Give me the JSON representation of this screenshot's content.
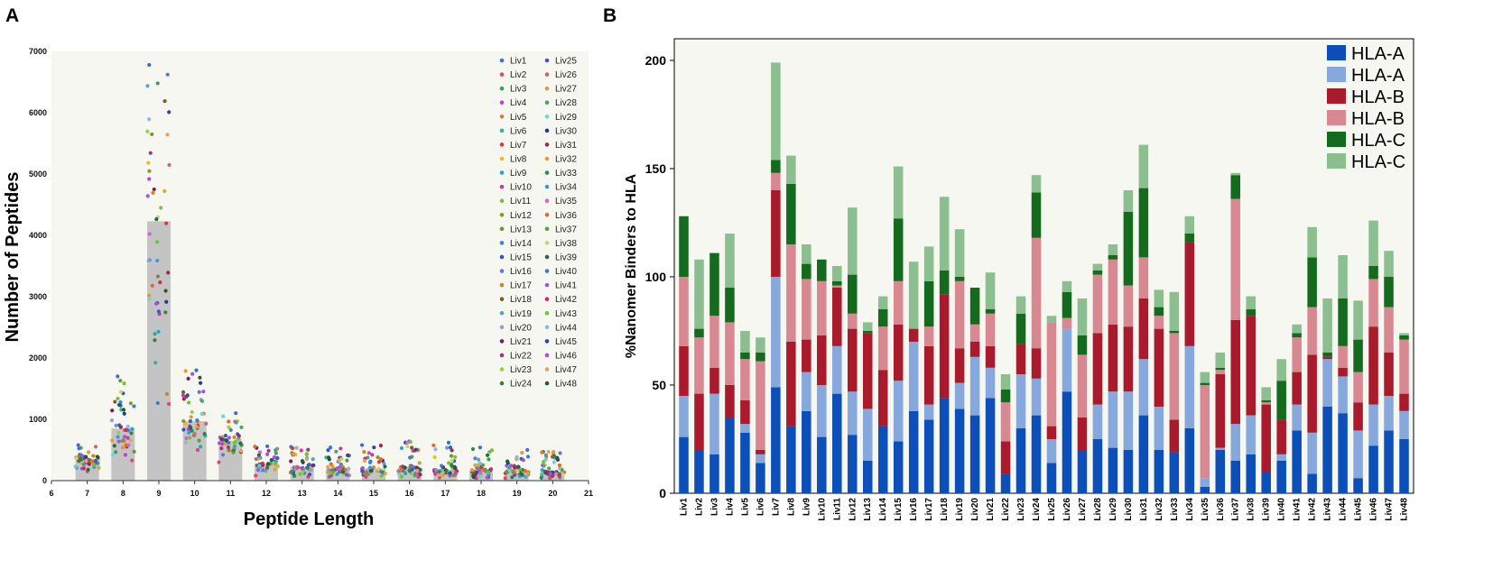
{
  "chart_data": [
    {
      "panel_label": "A",
      "type": "bar",
      "subtype": "bar-with-jittered-points",
      "title": "",
      "xlabel": "Peptide Length",
      "ylabel": "Number of Peptides",
      "xlim": [
        6,
        21
      ],
      "ylim": [
        0,
        7000
      ],
      "xticks": [
        "6",
        "7",
        "8",
        "9",
        "10",
        "11",
        "12",
        "13",
        "14",
        "15",
        "16",
        "17",
        "18",
        "19",
        "20",
        "21"
      ],
      "yticks": [
        "0",
        "1000",
        "2000",
        "3000",
        "4000",
        "5000",
        "6000",
        "7000"
      ],
      "categories": [
        "7",
        "8",
        "9",
        "10",
        "11",
        "12",
        "13",
        "14",
        "15",
        "16",
        "17",
        "18",
        "19",
        "20"
      ],
      "values": [
        350,
        850,
        4230,
        970,
        650,
        280,
        220,
        200,
        200,
        210,
        180,
        170,
        160,
        140
      ],
      "point_spread": [
        [
          150,
          580
        ],
        [
          330,
          1700
        ],
        [
          1250,
          6780
        ],
        [
          500,
          1800
        ],
        [
          300,
          1100
        ],
        [
          80,
          560
        ],
        [
          60,
          550
        ],
        [
          60,
          540
        ],
        [
          60,
          580
        ],
        [
          60,
          640
        ],
        [
          50,
          620
        ],
        [
          40,
          540
        ],
        [
          40,
          500
        ],
        [
          40,
          470
        ]
      ],
      "legend_entries": [
        "Liv1",
        "Liv2",
        "Liv3",
        "Liv4",
        "Liv5",
        "Liv6",
        "Liv7",
        "Liv8",
        "Liv9",
        "Liv10",
        "Liv11",
        "Liv12",
        "Liv13",
        "Liv14",
        "Liv15",
        "Liv16",
        "Liv17",
        "Liv18",
        "Liv19",
        "Liv20",
        "Liv21",
        "Liv22",
        "Liv23",
        "Liv24",
        "Liv25",
        "Liv26",
        "Liv27",
        "Liv28",
        "Liv29",
        "Liv30",
        "Liv31",
        "Liv32",
        "Liv33",
        "Liv34",
        "Liv35",
        "Liv36",
        "Liv37",
        "Liv38",
        "Liv39",
        "Liv40",
        "Liv41",
        "Liv42",
        "Liv43",
        "Liv44",
        "Liv45",
        "Liv46",
        "Liv47",
        "Liv48"
      ],
      "legend_colors": [
        "#3b6fd6",
        "#e0457b",
        "#2ca25f",
        "#c43fd1",
        "#e07b2f",
        "#2bb3a3",
        "#d63a3a",
        "#e3c21b",
        "#1fa6c9",
        "#c9389e",
        "#7ac22e",
        "#8a9a2a",
        "#6d8f3f",
        "#3e86c9",
        "#3a52c4",
        "#5b76d9",
        "#c9842e",
        "#7a5c2e",
        "#5a9fd6",
        "#9a9adb",
        "#7a1f5c",
        "#9a3a7a",
        "#9ccc4a",
        "#3a7a4a",
        "#3a5ac4",
        "#c46a6a",
        "#e09a3a",
        "#4aa36a",
        "#6ad6d6",
        "#2a3a8a",
        "#9a2a4a",
        "#e0a32a",
        "#2a8a4a",
        "#3a9ad6",
        "#c46ad6",
        "#e06a2a",
        "#6a9a3a",
        "#c9d66a",
        "#2a6a3a",
        "#3a7ad6",
        "#9a5ad6",
        "#c92a6a",
        "#6ac92a",
        "#8ab8e0",
        "#2a4a9a",
        "#b84ad6",
        "#e0a36a",
        "#2a5a2a"
      ],
      "bar_color": "#c4c4c4",
      "background": "#f6f7f0"
    },
    {
      "panel_label": "B",
      "type": "bar",
      "subtype": "stacked",
      "title": "",
      "xlabel": "",
      "ylabel": "%Nanomer Binders to HLA",
      "ylim": [
        0,
        210
      ],
      "yticks": [
        "0",
        "50",
        "100",
        "150",
        "200"
      ],
      "categories": [
        "Liv1",
        "Liv2",
        "Liv3",
        "Liv4",
        "Liv5",
        "Liv6",
        "Liv7",
        "Liv8",
        "Liv9",
        "Liv10",
        "Liv11",
        "Liv12",
        "Liv13",
        "Liv14",
        "Liv15",
        "Liv16",
        "Liv17",
        "Liv18",
        "Liv19",
        "Liv20",
        "Liv21",
        "Liv22",
        "Liv23",
        "Liv24",
        "Liv25",
        "Liv26",
        "Liv27",
        "Liv28",
        "Liv29",
        "Liv30",
        "Liv31",
        "Liv32",
        "Liv33",
        "Liv34",
        "Liv35",
        "Liv36",
        "Liv37",
        "Liv38",
        "Liv39",
        "Liv40",
        "Liv41",
        "Liv42",
        "Liv43",
        "Liv44",
        "Liv45",
        "Liv46",
        "Liv47",
        "Liv48"
      ],
      "series": [
        {
          "name": "HLA-A",
          "color": "#0d4fb8",
          "values": [
            26,
            20,
            18,
            35,
            28,
            14,
            49,
            31,
            38,
            26,
            46,
            27,
            15,
            31,
            24,
            38,
            34,
            44,
            39,
            36,
            44,
            9,
            30,
            36,
            14,
            47,
            20,
            25,
            21,
            20,
            36,
            20,
            19,
            30,
            3,
            20,
            15,
            18,
            10,
            15,
            29,
            9,
            40,
            37,
            7,
            22,
            29,
            25
          ]
        },
        {
          "name": "HLA-A",
          "color": "#86a8dc",
          "values": [
            19,
            0,
            28,
            0,
            4,
            4,
            51,
            0,
            18,
            24,
            22,
            20,
            24,
            0,
            28,
            32,
            7,
            0,
            12,
            27,
            14,
            0,
            25,
            17,
            11,
            29,
            0,
            16,
            26,
            27,
            26,
            20,
            0,
            38,
            4,
            1,
            17,
            18,
            0,
            3,
            12,
            19,
            22,
            17,
            22,
            19,
            16,
            13
          ]
        },
        {
          "name": "HLA-B",
          "color": "#a81a2c",
          "values": [
            23,
            26,
            12,
            15,
            11,
            2,
            40,
            39,
            15,
            23,
            27,
            29,
            35,
            26,
            26,
            6,
            27,
            48,
            16,
            7,
            10,
            15,
            14,
            14,
            6,
            0,
            15,
            33,
            31,
            30,
            28,
            36,
            15,
            48,
            0,
            34,
            48,
            46,
            31,
            16,
            15,
            36,
            1,
            4,
            13,
            36,
            20,
            8
          ]
        },
        {
          "name": "HLA-B",
          "color": "#d88890",
          "values": [
            32,
            26,
            24,
            29,
            19,
            41,
            8,
            45,
            28,
            25,
            1,
            7,
            0,
            20,
            20,
            0,
            9,
            0,
            31,
            8,
            15,
            18,
            0,
            51,
            48,
            5,
            29,
            27,
            30,
            19,
            19,
            6,
            40,
            0,
            43,
            2,
            56,
            0,
            1,
            0,
            16,
            22,
            0,
            10,
            14,
            22,
            21,
            25
          ]
        },
        {
          "name": "HLA-C",
          "color": "#146b1e",
          "values": [
            28,
            4,
            29,
            16,
            3,
            4,
            6,
            28,
            7,
            10,
            2,
            18,
            1,
            8,
            29,
            0,
            21,
            11,
            2,
            17,
            2,
            6,
            14,
            21,
            0,
            12,
            9,
            2,
            2,
            34,
            32,
            4,
            1,
            4,
            1,
            1,
            11,
            3,
            1,
            18,
            2,
            23,
            2,
            22,
            15,
            6,
            14,
            2
          ]
        },
        {
          "name": "HLA-C",
          "color": "#8bbf8f",
          "values": [
            0,
            32,
            0,
            25,
            10,
            7,
            45,
            13,
            9,
            0,
            7,
            31,
            4,
            6,
            24,
            31,
            16,
            34,
            22,
            0,
            17,
            7,
            8,
            8,
            3,
            5,
            17,
            3,
            5,
            10,
            20,
            8,
            18,
            8,
            5,
            7,
            1,
            6,
            6,
            10,
            4,
            14,
            25,
            20,
            18,
            21,
            12,
            1
          ]
        }
      ],
      "legend_position": "top-right",
      "background": "#f6f7f0"
    }
  ]
}
